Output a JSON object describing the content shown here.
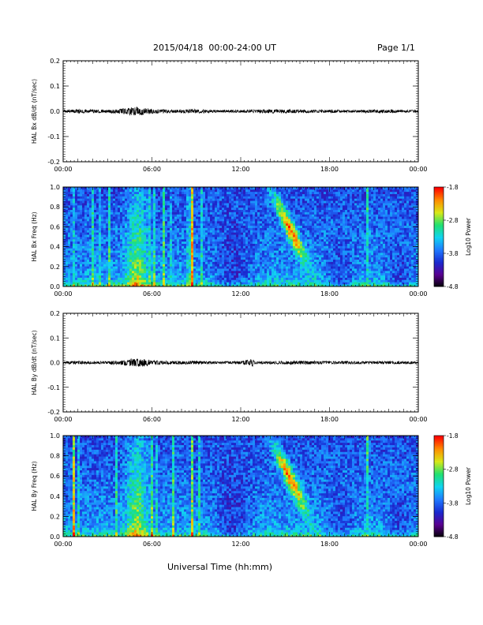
{
  "header": {
    "date_range": "2015/04/18  00:00-24:00 UT",
    "page": "Page 1/1"
  },
  "x_axis_label": "Universal Time (hh:mm)",
  "colorbar": {
    "label": "Log10 Power",
    "ticks": [
      "-1.8",
      "-2.8",
      "-3.8",
      "-4.8"
    ],
    "range": [
      -4.8,
      -1.8
    ],
    "colormap": [
      "#000000",
      "#5a0090",
      "#1a2ad0",
      "#1f7aff",
      "#10d4f0",
      "#20e070",
      "#d8e818",
      "#ff8c00",
      "#ff0000"
    ]
  },
  "chart_data": [
    {
      "type": "line",
      "ylabel": "HAL Bx dB/dt (nT/sec)",
      "xlim": [
        0,
        24
      ],
      "ylim": [
        -0.2,
        0.2
      ],
      "x_ticks": [
        "00:00",
        "06:00",
        "12:00",
        "18:00",
        "00:00"
      ],
      "y_ticks": [
        "0.2",
        "0.1",
        "0.0",
        "-0.1",
        "-0.2"
      ],
      "series": [
        {
          "x": [
            0,
            1,
            2,
            3,
            4,
            4.5,
            5,
            5.5,
            6,
            7,
            8,
            9,
            10,
            11,
            12,
            13,
            14,
            15,
            16,
            17,
            18,
            19,
            20,
            21,
            22,
            23,
            24
          ],
          "amplitude": [
            0.004,
            0.006,
            0.005,
            0.005,
            0.008,
            0.012,
            0.013,
            0.011,
            0.007,
            0.005,
            0.006,
            0.006,
            0.004,
            0.004,
            0.004,
            0.005,
            0.006,
            0.006,
            0.005,
            0.004,
            0.005,
            0.004,
            0.004,
            0.005,
            0.005,
            0.004,
            0.004
          ]
        }
      ]
    },
    {
      "type": "heatmap",
      "ylabel": "HAL Bx Freq (Hz)",
      "xlim": [
        0,
        24
      ],
      "ylim": [
        0,
        1
      ],
      "x_ticks": [
        "00:00",
        "06:00",
        "12:00",
        "18:00",
        "00:00"
      ],
      "y_ticks": [
        "1.0",
        "0.8",
        "0.6",
        "0.4",
        "0.2",
        "0.0"
      ],
      "zlim": [
        -4.8,
        -1.8
      ]
    },
    {
      "type": "line",
      "ylabel": "HAL By dB/dt (nT/sec)",
      "xlim": [
        0,
        24
      ],
      "ylim": [
        -0.2,
        0.2
      ],
      "x_ticks": [
        "00:00",
        "06:00",
        "12:00",
        "18:00",
        "00:00"
      ],
      "y_ticks": [
        "0.2",
        "0.1",
        "0.0",
        "-0.1",
        "-0.2"
      ],
      "series": [
        {
          "x": [
            0,
            1,
            2,
            3,
            4,
            4.5,
            5,
            5.5,
            6,
            7,
            8,
            9,
            10,
            11,
            12,
            12.8,
            13,
            14,
            15,
            16,
            17,
            18,
            19,
            20,
            21,
            22,
            23,
            24
          ],
          "amplitude": [
            0.004,
            0.005,
            0.004,
            0.004,
            0.008,
            0.012,
            0.014,
            0.012,
            0.007,
            0.005,
            0.005,
            0.005,
            0.004,
            0.004,
            0.004,
            0.012,
            0.004,
            0.005,
            0.005,
            0.006,
            0.005,
            0.004,
            0.005,
            0.004,
            0.004,
            0.005,
            0.004,
            0.004
          ]
        }
      ]
    },
    {
      "type": "heatmap",
      "ylabel": "HAL By Freq (Hz)",
      "xlim": [
        0,
        24
      ],
      "ylim": [
        0,
        1
      ],
      "x_ticks": [
        "00:00",
        "06:00",
        "12:00",
        "18:00",
        "00:00"
      ],
      "y_ticks": [
        "1.0",
        "0.8",
        "0.6",
        "0.4",
        "0.2",
        "0.0"
      ],
      "zlim": [
        -4.8,
        -1.8
      ]
    }
  ]
}
